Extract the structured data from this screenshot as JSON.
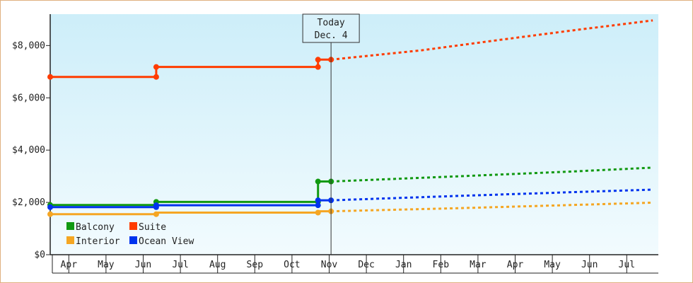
{
  "chart_data": {
    "type": "line",
    "title": "",
    "xlabel": "",
    "ylabel": "",
    "x_ticks": [
      "Apr",
      "May",
      "Jun",
      "Jul",
      "Aug",
      "Sep",
      "Oct",
      "Nov",
      "Dec",
      "Jan",
      "Feb",
      "Mar",
      "Apr",
      "May",
      "Jun",
      "Jul"
    ],
    "ylim": [
      0,
      9200
    ],
    "y_ticks": [
      {
        "value": 0,
        "label": "$0"
      },
      {
        "value": 2000,
        "label": "$2,000"
      },
      {
        "value": 4000,
        "label": "$4,000"
      },
      {
        "value": 6000,
        "label": "$6,000"
      },
      {
        "value": 8000,
        "label": "$8,000"
      }
    ],
    "today": {
      "line1": "Today",
      "line2": "Dec. 4",
      "x": 7.55
    },
    "grid": false,
    "legend_position": "bottom-left",
    "background_colors": [
      "#cdeef9",
      "#f2fbfe"
    ],
    "series": [
      {
        "name": "Suite",
        "color": "#ff3c00",
        "history": [
          [
            0,
            6800
          ],
          [
            2.85,
            6800
          ],
          [
            2.85,
            7180
          ],
          [
            7.2,
            7180
          ],
          [
            7.2,
            7460
          ],
          [
            7.55,
            7460
          ]
        ],
        "markers": [
          [
            0,
            6800
          ],
          [
            2.85,
            6800
          ],
          [
            2.85,
            7180
          ],
          [
            7.2,
            7180
          ],
          [
            7.2,
            7460
          ],
          [
            7.55,
            7460
          ]
        ],
        "forecast": [
          [
            7.55,
            7460
          ],
          [
            10,
            7820
          ],
          [
            12,
            8200
          ],
          [
            14,
            8570
          ],
          [
            16.2,
            8960
          ]
        ]
      },
      {
        "name": "Balcony",
        "color": "#119911",
        "history": [
          [
            0,
            1900
          ],
          [
            2.85,
            1900
          ],
          [
            2.85,
            2020
          ],
          [
            7.2,
            2020
          ],
          [
            7.2,
            2800
          ],
          [
            7.55,
            2800
          ]
        ],
        "markers": [
          [
            0,
            1900
          ],
          [
            2.85,
            1900
          ],
          [
            2.85,
            2020
          ],
          [
            7.2,
            2020
          ],
          [
            7.2,
            2800
          ],
          [
            7.55,
            2800
          ]
        ],
        "forecast": [
          [
            7.55,
            2800
          ],
          [
            11,
            3000
          ],
          [
            14,
            3180
          ],
          [
            16.2,
            3330
          ]
        ]
      },
      {
        "name": "Ocean View",
        "color": "#0033ee",
        "history": [
          [
            0,
            1820
          ],
          [
            2.85,
            1820
          ],
          [
            2.85,
            1890
          ],
          [
            7.2,
            1890
          ],
          [
            7.2,
            2080
          ],
          [
            7.55,
            2080
          ]
        ],
        "markers": [
          [
            0,
            1820
          ],
          [
            2.85,
            1820
          ],
          [
            2.85,
            1890
          ],
          [
            7.2,
            1890
          ],
          [
            7.2,
            2080
          ],
          [
            7.55,
            2080
          ]
        ],
        "forecast": [
          [
            7.55,
            2080
          ],
          [
            11,
            2250
          ],
          [
            14,
            2390
          ],
          [
            16.2,
            2490
          ]
        ]
      },
      {
        "name": "Interior",
        "color": "#f5a623",
        "history": [
          [
            0,
            1550
          ],
          [
            2.85,
            1550
          ],
          [
            2.85,
            1610
          ],
          [
            7.2,
            1610
          ],
          [
            7.2,
            1660
          ],
          [
            7.55,
            1660
          ]
        ],
        "markers": [
          [
            0,
            1550
          ],
          [
            2.85,
            1550
          ],
          [
            7.2,
            1610
          ],
          [
            7.55,
            1660
          ]
        ],
        "forecast": [
          [
            7.55,
            1660
          ],
          [
            11,
            1780
          ],
          [
            14,
            1900
          ],
          [
            16.2,
            1990
          ]
        ]
      }
    ],
    "legend": [
      {
        "name": "Balcony",
        "color": "#119911"
      },
      {
        "name": "Suite",
        "color": "#ff3c00"
      },
      {
        "name": "Interior",
        "color": "#f5a623"
      },
      {
        "name": "Ocean View",
        "color": "#0033ee"
      }
    ]
  }
}
